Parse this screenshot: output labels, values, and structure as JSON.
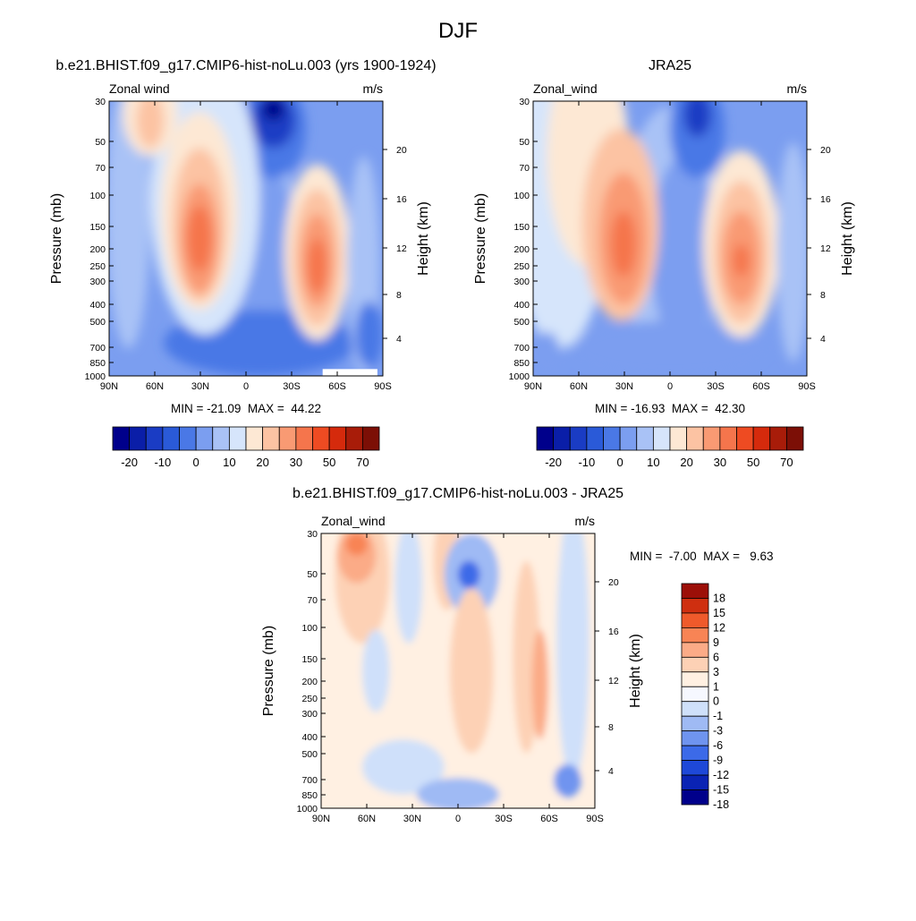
{
  "figure": {
    "title": "DJF"
  },
  "colors": {
    "full_scale": [
      "#00008b",
      "#0a1ea8",
      "#1a3cc4",
      "#2a5ad8",
      "#4a78e6",
      "#7b9ef0",
      "#a9c2f6",
      "#d6e5fb",
      "#fde8d4",
      "#fcc3a3",
      "#f99a73",
      "#f5754c",
      "#ee4b22",
      "#d52a0c",
      "#a81c09",
      "#7c0f06"
    ],
    "diff_scale": [
      "#00008b",
      "#0a23b4",
      "#1e48d8",
      "#3c6ae8",
      "#6f94ef",
      "#9fbaf4",
      "#cfe0fa",
      "#f6f8ff",
      "#fff0e2",
      "#fdd1b5",
      "#fbab87",
      "#f88455",
      "#ef5a2b",
      "#cf2f10",
      "#9c0f08"
    ]
  },
  "chart_data": [
    {
      "type": "heatmap",
      "title": "b.e21.BHIST.f09_g17.CMIP6-hist-noLu.003 (yrs 1900-1924)",
      "left_label": "Zonal wind",
      "right_label": "m/s",
      "ylabel": "Pressure (mb)",
      "ylabel_right": "Height (km)",
      "x_ticks": [
        "90N",
        "60N",
        "30N",
        "0",
        "30S",
        "60S",
        "90S"
      ],
      "y_ticks": [
        "30",
        "50",
        "70",
        "100",
        "150",
        "200",
        "250",
        "300",
        "400",
        "500",
        "700",
        "850",
        "1000"
      ],
      "y_ticks_right": [
        "20",
        "16",
        "12",
        "8",
        "4"
      ],
      "min_max_label": "MIN = -21.09  MAX =  44.22",
      "colorbar_labels": [
        "-20",
        "-10",
        "0",
        "10",
        "20",
        "30",
        "50",
        "70"
      ]
    },
    {
      "type": "heatmap",
      "title": "JRA25",
      "left_label": "Zonal_wind",
      "right_label": "m/s",
      "ylabel": "Pressure (mb)",
      "ylabel_right": "Height (km)",
      "x_ticks": [
        "90N",
        "60N",
        "30N",
        "0",
        "30S",
        "60S",
        "90S"
      ],
      "y_ticks": [
        "30",
        "50",
        "70",
        "100",
        "150",
        "200",
        "250",
        "300",
        "400",
        "500",
        "700",
        "850",
        "1000"
      ],
      "y_ticks_right": [
        "20",
        "16",
        "12",
        "8",
        "4"
      ],
      "min_max_label": "MIN = -16.93  MAX =  42.30",
      "colorbar_labels": [
        "-20",
        "-10",
        "0",
        "10",
        "20",
        "30",
        "50",
        "70"
      ]
    },
    {
      "type": "heatmap",
      "title": "b.e21.BHIST.f09_g17.CMIP6-hist-noLu.003 - JRA25",
      "left_label": "Zonal_wind",
      "right_label": "m/s",
      "ylabel": "Pressure (mb)",
      "ylabel_right": "Height (km)",
      "x_ticks": [
        "90N",
        "60N",
        "30N",
        "0",
        "30S",
        "60S",
        "90S"
      ],
      "y_ticks": [
        "30",
        "50",
        "70",
        "100",
        "150",
        "200",
        "250",
        "300",
        "400",
        "500",
        "700",
        "850",
        "1000"
      ],
      "y_ticks_right": [
        "20",
        "16",
        "12",
        "8",
        "4"
      ],
      "min_max_label": "MIN =  -7.00  MAX =   9.63",
      "colorbar_labels": [
        "18",
        "15",
        "12",
        "9",
        "6",
        "3",
        "1",
        "0",
        "-1",
        "-3",
        "-6",
        "-9",
        "-12",
        "-15",
        "-18"
      ]
    }
  ]
}
